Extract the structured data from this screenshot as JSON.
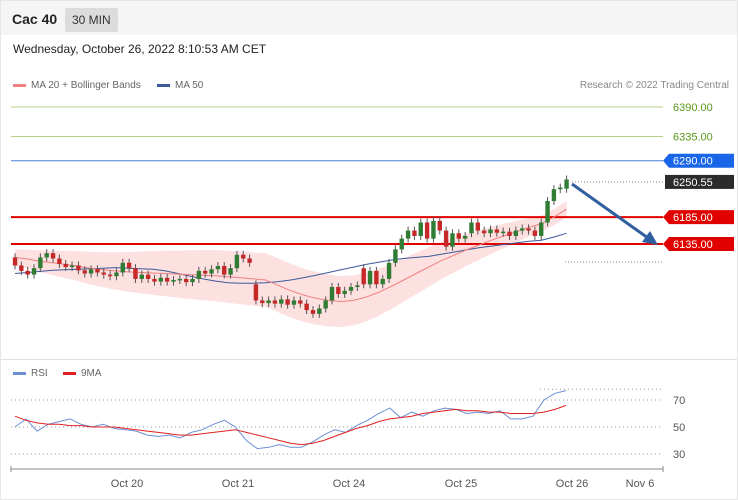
{
  "header": {
    "symbol": "Cac 40",
    "timeframe": "30 MIN"
  },
  "timestamp": "Wednesday, October 26, 2022 8:10:53 AM CET",
  "legend": {
    "ma20_label": "MA 20 + Bollinger Bands",
    "ma50_label": "MA 50",
    "rsi_label": "RSI",
    "rsi_ma_label": "9MA"
  },
  "credit": "Research © 2022 Trading Central",
  "colors": {
    "ma20": "#f08080",
    "ma50": "#3a5a9a",
    "bands": "#fde0e0",
    "up": "#2e7d32",
    "down": "#c62828",
    "rsi": "#6b8fd6",
    "rsi_ma": "#e02020"
  },
  "chart_data": [
    {
      "type": "candlestick",
      "x_tick_labels": [
        "Oct 20",
        "Oct 21",
        "Oct 24",
        "Oct 25",
        "Oct 26",
        "Nov 6"
      ],
      "price_levels": [
        {
          "label": "6390.00",
          "value": 6390,
          "kind": "resistance"
        },
        {
          "label": "6335.00",
          "value": 6335,
          "kind": "resistance"
        },
        {
          "label": "6290.00",
          "value": 6290,
          "kind": "pivot"
        },
        {
          "label": "6250.55",
          "value": 6250.55,
          "kind": "last_price"
        },
        {
          "label": "6185.00",
          "value": 6185,
          "kind": "support"
        },
        {
          "label": "6135.00",
          "value": 6135,
          "kind": "support"
        }
      ],
      "ylim": [
        5920,
        6440
      ],
      "candles": [
        [
          6110,
          6095
        ],
        [
          6095,
          6085
        ],
        [
          6085,
          6078
        ],
        [
          6078,
          6090
        ],
        [
          6090,
          6110
        ],
        [
          6110,
          6118
        ],
        [
          6118,
          6108
        ],
        [
          6108,
          6098
        ],
        [
          6098,
          6092
        ],
        [
          6092,
          6095
        ],
        [
          6095,
          6086
        ],
        [
          6086,
          6080
        ],
        [
          6080,
          6088
        ],
        [
          6088,
          6082
        ],
        [
          6082,
          6078
        ],
        [
          6078,
          6075
        ],
        [
          6075,
          6082
        ],
        [
          6082,
          6100
        ],
        [
          6100,
          6090
        ],
        [
          6090,
          6070
        ],
        [
          6070,
          6078
        ],
        [
          6078,
          6070
        ],
        [
          6070,
          6065
        ],
        [
          6065,
          6072
        ],
        [
          6072,
          6065
        ],
        [
          6065,
          6068
        ],
        [
          6068,
          6070
        ],
        [
          6070,
          6064
        ],
        [
          6064,
          6070
        ],
        [
          6070,
          6085
        ],
        [
          6085,
          6080
        ],
        [
          6080,
          6088
        ],
        [
          6088,
          6094
        ],
        [
          6094,
          6078
        ],
        [
          6078,
          6090
        ],
        [
          6090,
          6115
        ],
        [
          6115,
          6108
        ],
        [
          6108,
          6100
        ],
        [
          6060,
          6030
        ],
        [
          6030,
          6025
        ],
        [
          6025,
          6030
        ],
        [
          6030,
          6024
        ],
        [
          6024,
          6032
        ],
        [
          6032,
          6022
        ],
        [
          6022,
          6030
        ],
        [
          6030,
          6024
        ],
        [
          6024,
          6012
        ],
        [
          6012,
          6005
        ],
        [
          6005,
          6015
        ],
        [
          6015,
          6030
        ],
        [
          6030,
          6055
        ],
        [
          6055,
          6042
        ],
        [
          6042,
          6048
        ],
        [
          6048,
          6055
        ],
        [
          6055,
          6058
        ],
        [
          6090,
          6060
        ],
        [
          6060,
          6085
        ],
        [
          6085,
          6060
        ],
        [
          6060,
          6070
        ],
        [
          6070,
          6100
        ],
        [
          6100,
          6125
        ],
        [
          6125,
          6145
        ],
        [
          6145,
          6160
        ],
        [
          6160,
          6150
        ],
        [
          6150,
          6175
        ],
        [
          6175,
          6145
        ],
        [
          6145,
          6178
        ],
        [
          6178,
          6160
        ],
        [
          6160,
          6130
        ],
        [
          6130,
          6155
        ],
        [
          6155,
          6145
        ],
        [
          6145,
          6150
        ],
        [
          6155,
          6175
        ],
        [
          6175,
          6160
        ],
        [
          6160,
          6155
        ],
        [
          6155,
          6162
        ],
        [
          6162,
          6156
        ],
        [
          6156,
          6158
        ],
        [
          6158,
          6150
        ],
        [
          6150,
          6160
        ],
        [
          6160,
          6164
        ],
        [
          6164,
          6160
        ],
        [
          6160,
          6150
        ],
        [
          6150,
          6175
        ],
        [
          6175,
          6215
        ],
        [
          6215,
          6237
        ],
        [
          6237,
          6240
        ],
        [
          6238,
          6255
        ]
      ],
      "ma20": [
        6110,
        6107,
        6103,
        6100,
        6097,
        6094,
        6090,
        6087,
        6085,
        6083,
        6082,
        6081,
        6080,
        6079,
        6078,
        6077,
        6076,
        6074,
        6072,
        6070,
        6068,
        6058,
        6048,
        6040,
        6034,
        6030,
        6028,
        6030,
        6036,
        6045,
        6056,
        6068,
        6080,
        6092,
        6104,
        6114,
        6124,
        6133,
        6142,
        6150,
        6158,
        6166,
        6173,
        6185,
        6200
      ],
      "ma50": [
        6080,
        6082,
        6084,
        6086,
        6087,
        6088,
        6089,
        6090,
        6091,
        6090,
        6089,
        6088,
        6085,
        6080,
        6075,
        6070,
        6066,
        6063,
        6062,
        6062,
        6063,
        6065,
        6068,
        6072,
        6077,
        6082,
        6087,
        6092,
        6097,
        6101,
        6105,
        6108,
        6110,
        6112,
        6116,
        6120,
        6124,
        6128,
        6131,
        6134,
        6137,
        6140,
        6142,
        6148,
        6155
      ]
    },
    {
      "type": "line",
      "title": "RSI",
      "y_tick_labels": [
        "70",
        "50",
        "30"
      ],
      "ylim": [
        22,
        82
      ],
      "series": [
        {
          "name": "RSI",
          "values": [
            50,
            56,
            47,
            52,
            54,
            56,
            52,
            50,
            52,
            49,
            48,
            47,
            44,
            43,
            44,
            42,
            46,
            48,
            52,
            55,
            50,
            40,
            34,
            35,
            37,
            35,
            35,
            39,
            44,
            48,
            46,
            51,
            55,
            60,
            64,
            57,
            61,
            58,
            62,
            64,
            63,
            60,
            61,
            60,
            62,
            56,
            56,
            58,
            70,
            75,
            77
          ]
        },
        {
          "name": "9MA",
          "values": [
            58,
            55,
            53,
            52,
            52,
            51,
            51,
            50,
            50,
            50,
            49,
            48,
            47,
            46,
            45,
            44,
            44,
            45,
            46,
            47,
            48,
            46,
            44,
            42,
            40,
            38,
            37,
            38,
            40,
            43,
            46,
            49,
            51,
            54,
            56,
            57,
            58,
            60,
            61,
            62,
            63,
            62,
            62,
            61,
            61,
            60,
            60,
            60,
            61,
            63,
            66
          ]
        }
      ]
    }
  ]
}
